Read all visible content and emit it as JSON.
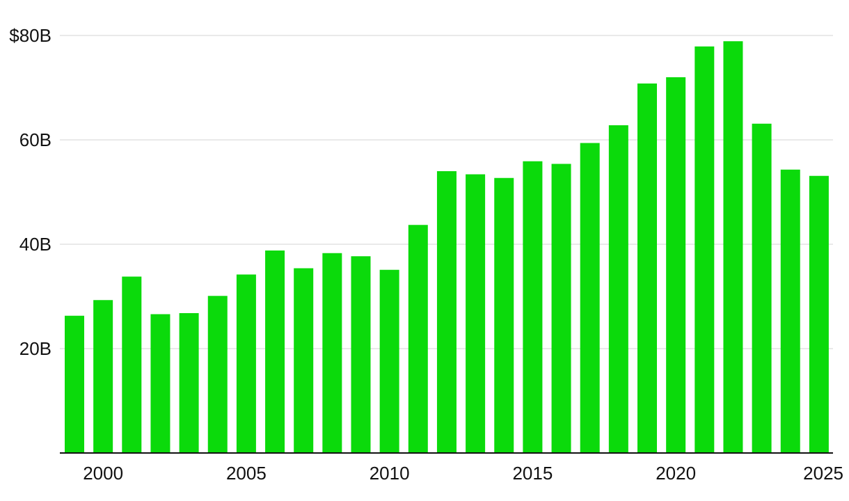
{
  "chart_data": {
    "type": "bar",
    "title": "",
    "xlabel": "",
    "ylabel": "",
    "color": "#0bda0b",
    "grid": true,
    "ylim": [
      0,
      80
    ],
    "yticks": [
      {
        "value": 20,
        "label": "20B"
      },
      {
        "value": 40,
        "label": "40B"
      },
      {
        "value": 60,
        "label": "60B"
      },
      {
        "value": 80,
        "label": "$80B"
      }
    ],
    "xticks": [
      {
        "value": 2000,
        "label": "2000"
      },
      {
        "value": 2005,
        "label": "2005"
      },
      {
        "value": 2010,
        "label": "2010"
      },
      {
        "value": 2015,
        "label": "2015"
      },
      {
        "value": 2020,
        "label": "2020"
      },
      {
        "value": 2025,
        "label": "2025"
      }
    ],
    "categories": [
      1999,
      2000,
      2001,
      2002,
      2003,
      2004,
      2005,
      2006,
      2007,
      2008,
      2009,
      2010,
      2011,
      2012,
      2013,
      2014,
      2015,
      2016,
      2017,
      2018,
      2019,
      2020,
      2021,
      2022,
      2023,
      2024,
      2025
    ],
    "values": [
      26.3,
      29.3,
      33.8,
      26.6,
      26.8,
      30.1,
      34.2,
      38.8,
      35.4,
      38.3,
      37.7,
      35.1,
      43.7,
      54.0,
      53.4,
      52.7,
      55.9,
      55.4,
      59.4,
      62.8,
      70.8,
      72.0,
      77.9,
      78.9,
      63.1,
      54.3,
      53.1
    ]
  }
}
